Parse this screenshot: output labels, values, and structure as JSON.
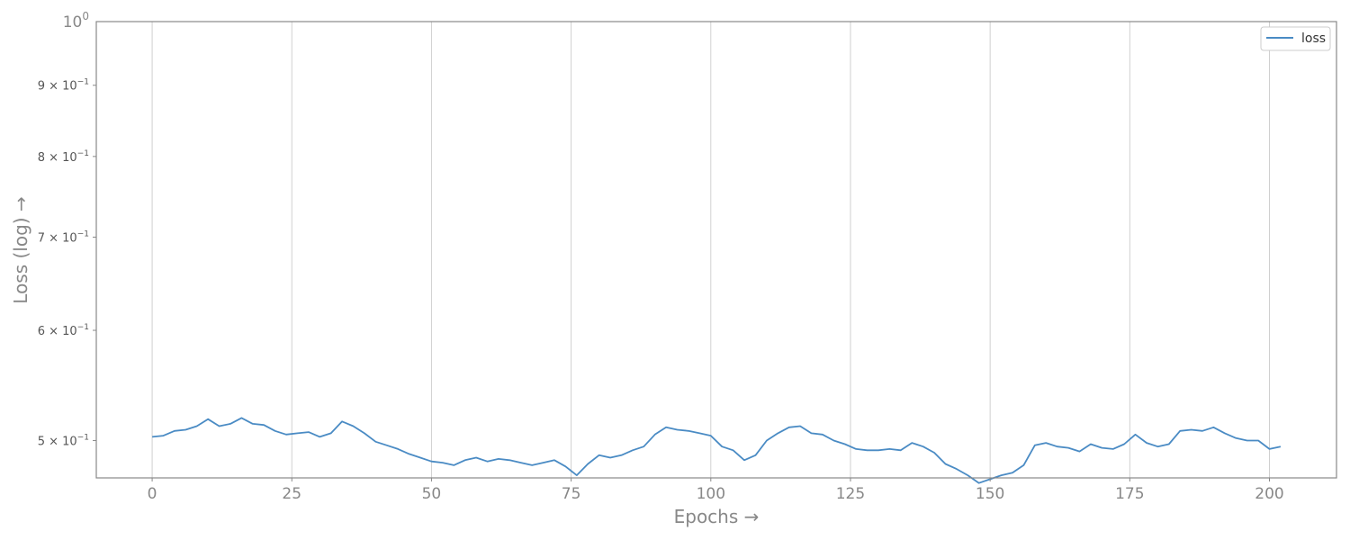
{
  "chart_data": {
    "type": "line",
    "xlabel": "Epochs →",
    "ylabel": "Loss (log) →",
    "xlim": [
      -10,
      212
    ],
    "ylim": [
      0.47,
      1.0
    ],
    "y_scale": "log",
    "grid": "vertical",
    "legend_position": "top-right",
    "x_ticks": [
      {
        "value": 0,
        "label": "0"
      },
      {
        "value": 25,
        "label": "25"
      },
      {
        "value": 50,
        "label": "50"
      },
      {
        "value": 75,
        "label": "75"
      },
      {
        "value": 100,
        "label": "100"
      },
      {
        "value": 125,
        "label": "125"
      },
      {
        "value": 150,
        "label": "150"
      },
      {
        "value": 175,
        "label": "175"
      },
      {
        "value": 200,
        "label": "200"
      }
    ],
    "y_ticks": [
      {
        "value": 0.5,
        "mantissa": "5",
        "exponent": "−1"
      },
      {
        "value": 0.6,
        "mantissa": "6",
        "exponent": "−1"
      },
      {
        "value": 0.7,
        "mantissa": "7",
        "exponent": "−1"
      },
      {
        "value": 0.8,
        "mantissa": "8",
        "exponent": "−1"
      },
      {
        "value": 0.9,
        "mantissa": "9",
        "exponent": "−1"
      }
    ],
    "y_top_tick": {
      "value": 1.0,
      "base": "10",
      "exponent": "0"
    },
    "colors": {
      "series": "#4a8bc4",
      "grid": "#d0d0d0",
      "spine": "#888888"
    },
    "series": [
      {
        "name": "loss",
        "x": [
          0,
          2,
          4,
          6,
          8,
          10,
          12,
          14,
          16,
          18,
          20,
          22,
          24,
          26,
          28,
          30,
          32,
          34,
          36,
          38,
          40,
          42,
          44,
          46,
          48,
          50,
          52,
          54,
          56,
          58,
          60,
          62,
          64,
          66,
          68,
          70,
          72,
          74,
          76,
          78,
          80,
          82,
          84,
          86,
          88,
          90,
          92,
          94,
          96,
          98,
          100,
          102,
          104,
          106,
          108,
          110,
          112,
          114,
          116,
          118,
          120,
          122,
          124,
          126,
          128,
          130,
          132,
          134,
          136,
          138,
          140,
          142,
          144,
          146,
          148,
          150,
          152,
          154,
          156,
          158,
          160,
          162,
          164,
          166,
          168,
          170,
          172,
          174,
          176,
          178,
          180,
          182,
          184,
          186,
          188,
          190,
          192,
          194,
          196,
          198,
          200,
          202
        ],
        "y": [
          0.503,
          0.504,
          0.508,
          0.509,
          0.512,
          0.518,
          0.512,
          0.514,
          0.519,
          0.514,
          0.513,
          0.508,
          0.505,
          0.506,
          0.507,
          0.503,
          0.506,
          0.516,
          0.512,
          0.506,
          0.499,
          0.496,
          0.493,
          0.489,
          0.486,
          0.483,
          0.482,
          0.48,
          0.484,
          0.486,
          0.483,
          0.485,
          0.484,
          0.482,
          0.48,
          0.482,
          0.484,
          0.479,
          0.472,
          0.481,
          0.488,
          0.486,
          0.488,
          0.492,
          0.495,
          0.505,
          0.511,
          0.509,
          0.508,
          0.506,
          0.504,
          0.495,
          0.492,
          0.484,
          0.488,
          0.5,
          0.506,
          0.511,
          0.512,
          0.506,
          0.505,
          0.5,
          0.497,
          0.493,
          0.492,
          0.492,
          0.493,
          0.492,
          0.498,
          0.495,
          0.49,
          0.481,
          0.477,
          0.472,
          0.466,
          0.469,
          0.472,
          0.474,
          0.48,
          0.496,
          0.498,
          0.495,
          0.494,
          0.491,
          0.497,
          0.494,
          0.493,
          0.497,
          0.505,
          0.498,
          0.495,
          0.497,
          0.508,
          0.509,
          0.508,
          0.511,
          0.506,
          0.502,
          0.5,
          0.5,
          0.493,
          0.495
        ]
      }
    ]
  }
}
